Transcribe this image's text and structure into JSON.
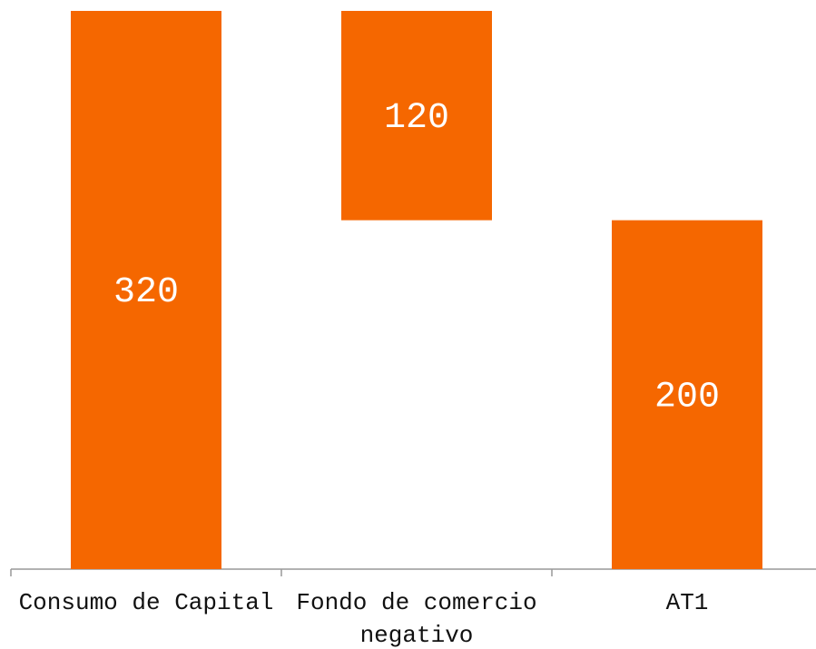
{
  "chart_data": {
    "type": "waterfall",
    "categories": [
      "Consumo de Capital",
      "Fondo de comercio negativo",
      "AT1"
    ],
    "values": [
      320,
      120,
      200
    ],
    "measures": [
      "total",
      "decrease",
      "total"
    ],
    "color": "#f56700",
    "ylim": [
      0,
      320
    ]
  }
}
